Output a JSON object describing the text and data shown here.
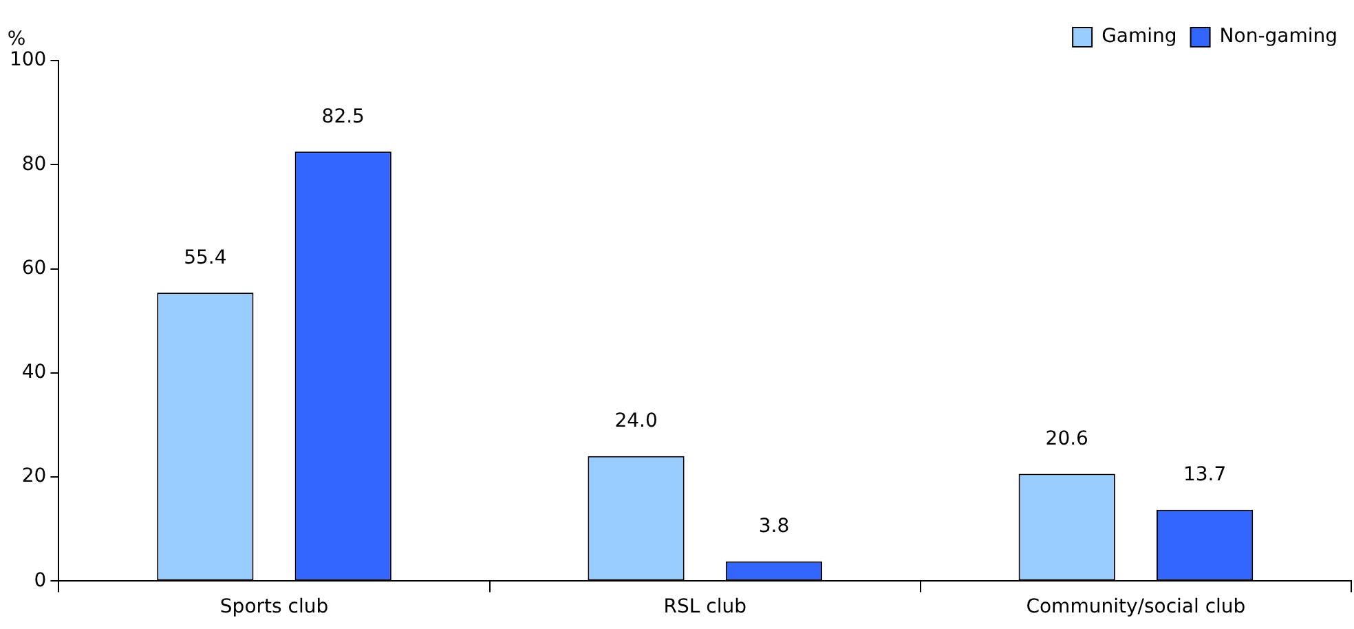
{
  "chart_data": {
    "type": "bar",
    "ylabel": "%",
    "categories": [
      "Sports club",
      "RSL club",
      "Community/social club"
    ],
    "series": [
      {
        "name": "Gaming",
        "color": "#99ccff",
        "values": [
          55.4,
          24.0,
          20.6
        ],
        "value_labels": [
          "55.4",
          "24.0",
          "20.6"
        ]
      },
      {
        "name": "Non-gaming",
        "color": "#3366ff",
        "values": [
          82.5,
          3.8,
          13.7
        ],
        "value_labels": [
          "82.5",
          "3.8",
          "13.7"
        ]
      }
    ],
    "ylim": [
      0,
      100
    ],
    "yticks": [
      0,
      20,
      40,
      60,
      80,
      100
    ],
    "legend": "top right"
  }
}
